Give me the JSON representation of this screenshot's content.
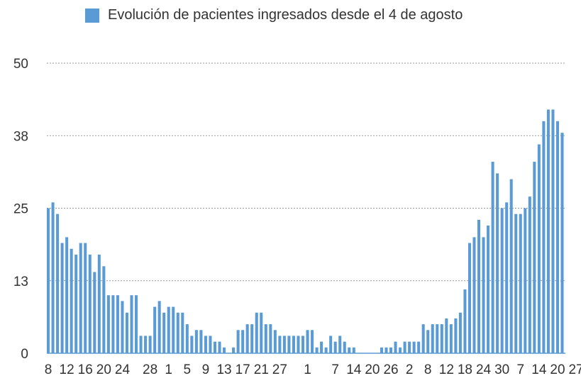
{
  "chart_data": {
    "type": "bar",
    "title": "",
    "legend": {
      "label": "Evolución de pacientes ingresados desde el 4 de agosto",
      "position": "top"
    },
    "xlabel": "",
    "ylabel": "",
    "ylim": [
      0,
      50
    ],
    "y_ticks": [
      {
        "value": 0,
        "label": "0"
      },
      {
        "value": 12.5,
        "label": "13"
      },
      {
        "value": 25,
        "label": "25"
      },
      {
        "value": 37.5,
        "label": "38"
      },
      {
        "value": 50,
        "label": "50"
      }
    ],
    "grid": true,
    "color": "#5b9bd5",
    "x_tick_labels": [
      {
        "index": 0,
        "label": "8"
      },
      {
        "index": 4,
        "label": "12"
      },
      {
        "index": 8,
        "label": "16"
      },
      {
        "index": 12,
        "label": "20"
      },
      {
        "index": 16,
        "label": "24"
      },
      {
        "index": 22,
        "label": "28"
      },
      {
        "index": 26,
        "label": "1"
      },
      {
        "index": 30,
        "label": "5"
      },
      {
        "index": 34,
        "label": "9"
      },
      {
        "index": 38,
        "label": "13"
      },
      {
        "index": 42,
        "label": "17"
      },
      {
        "index": 46,
        "label": "21"
      },
      {
        "index": 50,
        "label": "27"
      },
      {
        "index": 56,
        "label": "1"
      },
      {
        "index": 62,
        "label": "7"
      },
      {
        "index": 66,
        "label": "14"
      },
      {
        "index": 70,
        "label": "20"
      },
      {
        "index": 74,
        "label": "26"
      },
      {
        "index": 78,
        "label": "2"
      },
      {
        "index": 82,
        "label": "8"
      },
      {
        "index": 86,
        "label": "12"
      },
      {
        "index": 90,
        "label": "18"
      },
      {
        "index": 94,
        "label": "24"
      },
      {
        "index": 98,
        "label": "30"
      },
      {
        "index": 102,
        "label": "7"
      },
      {
        "index": 106,
        "label": "14"
      },
      {
        "index": 110,
        "label": "20"
      },
      {
        "index": 114,
        "label": "27"
      }
    ],
    "values": [
      25,
      26,
      24,
      19,
      20,
      18,
      17,
      19,
      19,
      17,
      14,
      17,
      15,
      10,
      10,
      10,
      9,
      7,
      10,
      10,
      3,
      3,
      3,
      8,
      9,
      7,
      8,
      8,
      7,
      7,
      5,
      3,
      4,
      4,
      3,
      3,
      2,
      2,
      1,
      0,
      1,
      4,
      4,
      5,
      5,
      7,
      7,
      5,
      5,
      4,
      3,
      3,
      3,
      3,
      3,
      3,
      4,
      4,
      1,
      2,
      1,
      3,
      2,
      3,
      2,
      1,
      1,
      0,
      0,
      0,
      0,
      0,
      1,
      1,
      1,
      2,
      1,
      2,
      2,
      2,
      2,
      5,
      4,
      5,
      5,
      5,
      6,
      5,
      6,
      7,
      11,
      19,
      20,
      23,
      20,
      22,
      33,
      31,
      25,
      26,
      30,
      24,
      24,
      25,
      27,
      33,
      36,
      40,
      42,
      42,
      40,
      38
    ]
  }
}
